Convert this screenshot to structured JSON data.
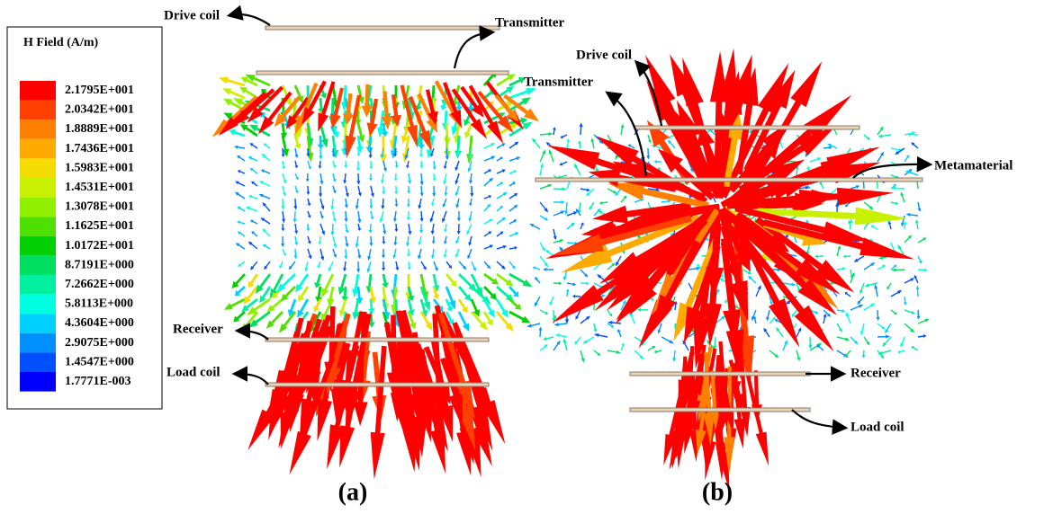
{
  "legend": {
    "title": "H Field (A/m)",
    "entries": [
      {
        "label": "2.1795E+001",
        "color": "#ff0000"
      },
      {
        "label": "2.0342E+001",
        "color": "#ff4000"
      },
      {
        "label": "1.8889E+001",
        "color": "#ff8000"
      },
      {
        "label": "1.7436E+001",
        "color": "#ffaa00"
      },
      {
        "label": "1.5983E+001",
        "color": "#f5dc00"
      },
      {
        "label": "1.4531E+001",
        "color": "#c8f000"
      },
      {
        "label": "1.3078E+001",
        "color": "#90f000"
      },
      {
        "label": "1.1625E+001",
        "color": "#50e000"
      },
      {
        "label": "1.0172E+001",
        "color": "#00d000"
      },
      {
        "label": "8.7191E+000",
        "color": "#00e060"
      },
      {
        "label": "7.2662E+000",
        "color": "#00f0a0"
      },
      {
        "label": "5.8113E+000",
        "color": "#00ffe0"
      },
      {
        "label": "4.3604E+000",
        "color": "#00d0ff"
      },
      {
        "label": "2.9075E+000",
        "color": "#0090ff"
      },
      {
        "label": "1.4547E+000",
        "color": "#0050ff"
      },
      {
        "label": "1.7771E-003",
        "color": "#0000ff"
      }
    ]
  },
  "panels": [
    {
      "caption": "(a)",
      "labels": [
        "Drive coil",
        "Transmitter",
        "Receiver",
        "Load coil"
      ]
    },
    {
      "caption": "(b)",
      "labels": [
        "Drive coil",
        "Transmitter",
        "Metamaterial",
        "Receiver",
        "Load coil"
      ]
    }
  ]
}
